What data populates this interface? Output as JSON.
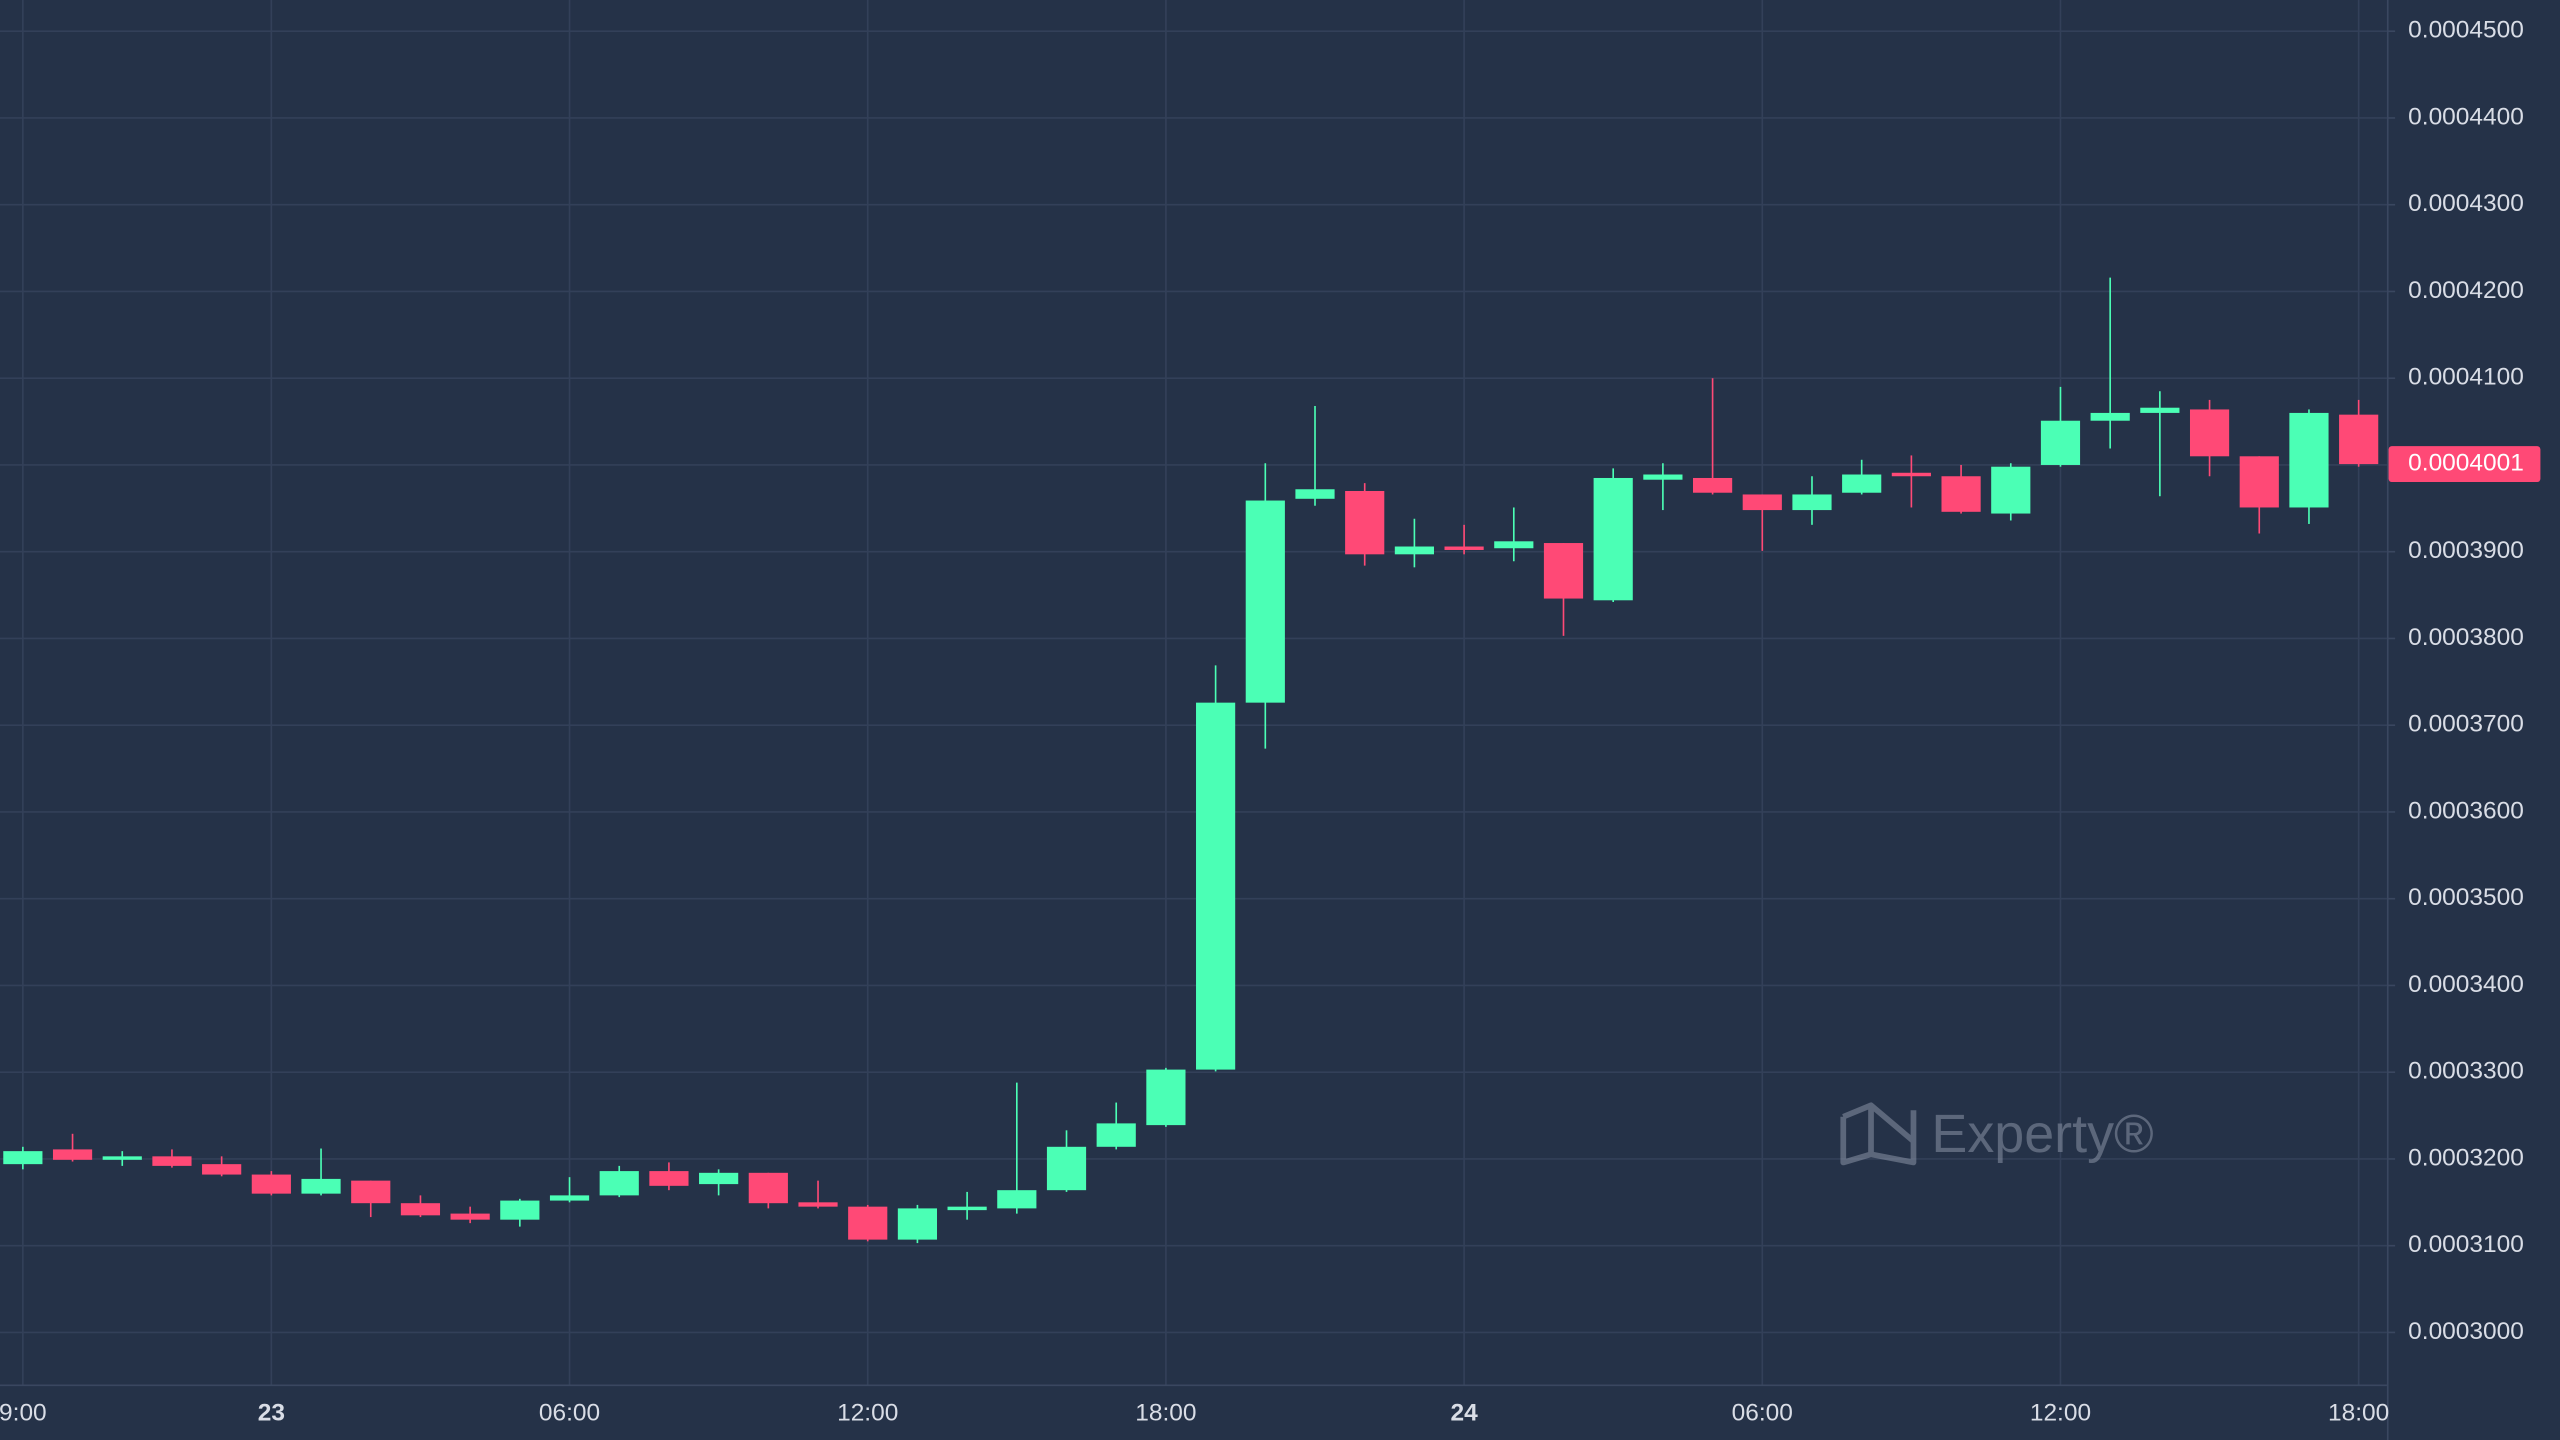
{
  "chart_data": {
    "type": "candlestick",
    "categories": [
      "9:00",
      null,
      null,
      null,
      null,
      "23",
      null,
      null,
      null,
      null,
      null,
      "06:00",
      null,
      null,
      null,
      null,
      null,
      "12:00",
      null,
      null,
      null,
      null,
      null,
      "18:00",
      null,
      null,
      null,
      null,
      null,
      "24",
      null,
      null,
      null,
      null,
      null,
      "06:00",
      null,
      null,
      null,
      null,
      null,
      "12:00",
      null,
      null,
      null,
      null,
      null,
      "18:00"
    ],
    "open": [
      0.0003194,
      0.0003211,
      0.0003199,
      0.0003203,
      0.0003194,
      0.0003182,
      0.000316,
      0.0003175,
      0.0003149,
      0.0003137,
      0.000313,
      0.0003152,
      0.0003158,
      0.0003186,
      0.0003171,
      0.0003184,
      0.000315,
      0.0003145,
      0.0003107,
      0.0003141,
      0.0003143,
      0.0003164,
      0.0003214,
      0.0003239,
      0.0003303,
      0.0003726,
      0.0003961,
      0.000397,
      0.0003897,
      0.0003906,
      0.0003904,
      0.000391,
      0.0003844,
      0.0003983,
      0.0003985,
      0.0003966,
      0.0003948,
      0.0003968,
      0.0003991,
      0.0003987,
      0.0003944,
      0.0004,
      0.0004051,
      0.000406,
      0.0004064,
      0.000401,
      0.0003951,
      0.0004058
    ],
    "high": [
      0.0003214,
      0.0003229,
      0.0003209,
      0.0003211,
      0.0003203,
      0.0003186,
      0.0003212,
      0.0003175,
      0.0003158,
      0.0003145,
      0.0003154,
      0.0003179,
      0.0003192,
      0.0003196,
      0.0003188,
      0.0003184,
      0.0003175,
      0.0003147,
      0.0003147,
      0.0003162,
      0.0003288,
      0.0003233,
      0.0003265,
      0.0003305,
      0.0003769,
      0.0004002,
      0.0004068,
      0.0003979,
      0.0003938,
      0.0003931,
      0.0003951,
      0.000391,
      0.0003996,
      0.0004002,
      0.00041,
      0.0003966,
      0.0003987,
      0.0004006,
      0.0004011,
      0.0004,
      0.0004002,
      0.000409,
      0.0004216,
      0.0004085,
      0.0004075,
      0.000401,
      0.0004064,
      0.0004075
    ],
    "low": [
      0.0003188,
      0.0003197,
      0.0003192,
      0.000319,
      0.000318,
      0.0003158,
      0.0003158,
      0.0003133,
      0.0003133,
      0.0003126,
      0.0003122,
      0.000315,
      0.0003156,
      0.0003164,
      0.0003158,
      0.0003143,
      0.0003143,
      0.0003105,
      0.0003103,
      0.000313,
      0.0003137,
      0.0003162,
      0.0003211,
      0.0003237,
      0.0003301,
      0.0003673,
      0.0003953,
      0.0003884,
      0.0003882,
      0.0003897,
      0.0003889,
      0.0003803,
      0.0003842,
      0.0003948,
      0.0003966,
      0.0003901,
      0.0003931,
      0.0003966,
      0.0003951,
      0.0003944,
      0.0003936,
      0.0003998,
      0.0004019,
      0.0003964,
      0.0003987,
      0.0003921,
      0.0003932,
      0.0003998
    ],
    "close": [
      0.0003209,
      0.0003199,
      0.0003203,
      0.0003192,
      0.0003182,
      0.000316,
      0.0003177,
      0.0003149,
      0.0003135,
      0.000313,
      0.0003152,
      0.0003158,
      0.0003186,
      0.0003169,
      0.0003184,
      0.0003149,
      0.0003145,
      0.0003107,
      0.0003143,
      0.0003145,
      0.0003164,
      0.0003214,
      0.0003241,
      0.0003303,
      0.0003726,
      0.0003959,
      0.0003972,
      0.0003897,
      0.0003906,
      0.0003902,
      0.0003912,
      0.0003846,
      0.0003985,
      0.0003989,
      0.0003968,
      0.0003948,
      0.0003966,
      0.0003989,
      0.0003987,
      0.0003946,
      0.0003998,
      0.0004051,
      0.000406,
      0.0004066,
      0.000401,
      0.0003951,
      0.000406,
      0.0004001
    ],
    "up_color": "#4bffb5",
    "down_color": "#ff4976",
    "ylim": [
      0.000294,
      0.0004536
    ],
    "yticks": [
      {
        "value": 0.0003,
        "label": "0.0003000"
      },
      {
        "value": 0.00031,
        "label": "0.0003100"
      },
      {
        "value": 0.00032,
        "label": "0.0003200"
      },
      {
        "value": 0.00033,
        "label": "0.0003300"
      },
      {
        "value": 0.00034,
        "label": "0.0003400"
      },
      {
        "value": 0.00035,
        "label": "0.0003500"
      },
      {
        "value": 0.00036,
        "label": "0.0003600"
      },
      {
        "value": 0.00037,
        "label": "0.0003700"
      },
      {
        "value": 0.00038,
        "label": "0.0003800"
      },
      {
        "value": 0.00039,
        "label": "0.0003900"
      },
      {
        "value": 0.0004,
        "label": "0.0004000"
      },
      {
        "value": 0.00041,
        "label": "0.0004100"
      },
      {
        "value": 0.00042,
        "label": "0.0004200"
      },
      {
        "value": 0.00043,
        "label": "0.0004300"
      },
      {
        "value": 0.00044,
        "label": "0.0004400"
      },
      {
        "value": 0.00045,
        "label": "0.0004500"
      }
    ],
    "grid": true,
    "last_price": 0.0004001,
    "watermark": "Experty®"
  }
}
